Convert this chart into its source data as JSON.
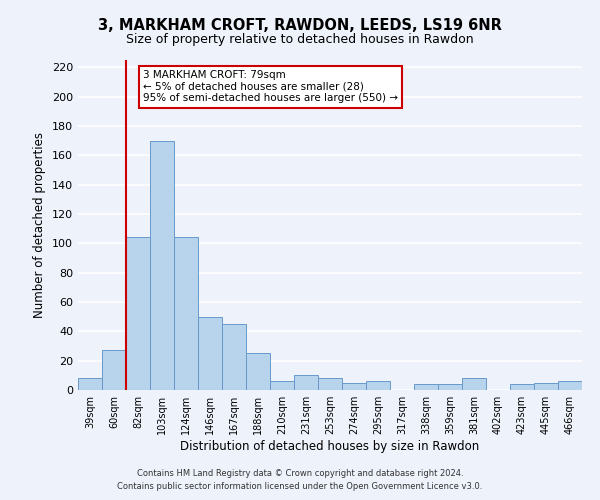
{
  "title": "3, MARKHAM CROFT, RAWDON, LEEDS, LS19 6NR",
  "subtitle": "Size of property relative to detached houses in Rawdon",
  "xlabel": "Distribution of detached houses by size in Rawdon",
  "ylabel": "Number of detached properties",
  "bar_labels": [
    "39sqm",
    "60sqm",
    "82sqm",
    "103sqm",
    "124sqm",
    "146sqm",
    "167sqm",
    "188sqm",
    "210sqm",
    "231sqm",
    "253sqm",
    "274sqm",
    "295sqm",
    "317sqm",
    "338sqm",
    "359sqm",
    "381sqm",
    "402sqm",
    "423sqm",
    "445sqm",
    "466sqm"
  ],
  "bar_values": [
    8,
    27,
    104,
    170,
    104,
    50,
    45,
    25,
    6,
    10,
    8,
    5,
    6,
    0,
    4,
    4,
    8,
    0,
    4,
    5,
    6
  ],
  "bar_color": "#b8d4ed",
  "bar_edge_color": "#6699cc",
  "bar_linewidth": 0.7,
  "ylim": [
    0,
    225
  ],
  "yticks": [
    0,
    20,
    40,
    60,
    80,
    100,
    120,
    140,
    160,
    180,
    200,
    220
  ],
  "vline_color": "#cc0000",
  "annotation_line1": "3 MARKHAM CROFT: 79sqm",
  "annotation_line2": "← 5% of detached houses are smaller (28)",
  "annotation_line3": "95% of semi-detached houses are larger (550) →",
  "annotation_box_color": "#ffffff",
  "annotation_box_edge_color": "#cc0000",
  "footer_line1": "Contains HM Land Registry data © Crown copyright and database right 2024.",
  "footer_line2": "Contains public sector information licensed under the Open Government Licence v3.0.",
  "background_color": "#eef2fb",
  "grid_color": "#ffffff",
  "title_fontsize": 10.5,
  "subtitle_fontsize": 9
}
